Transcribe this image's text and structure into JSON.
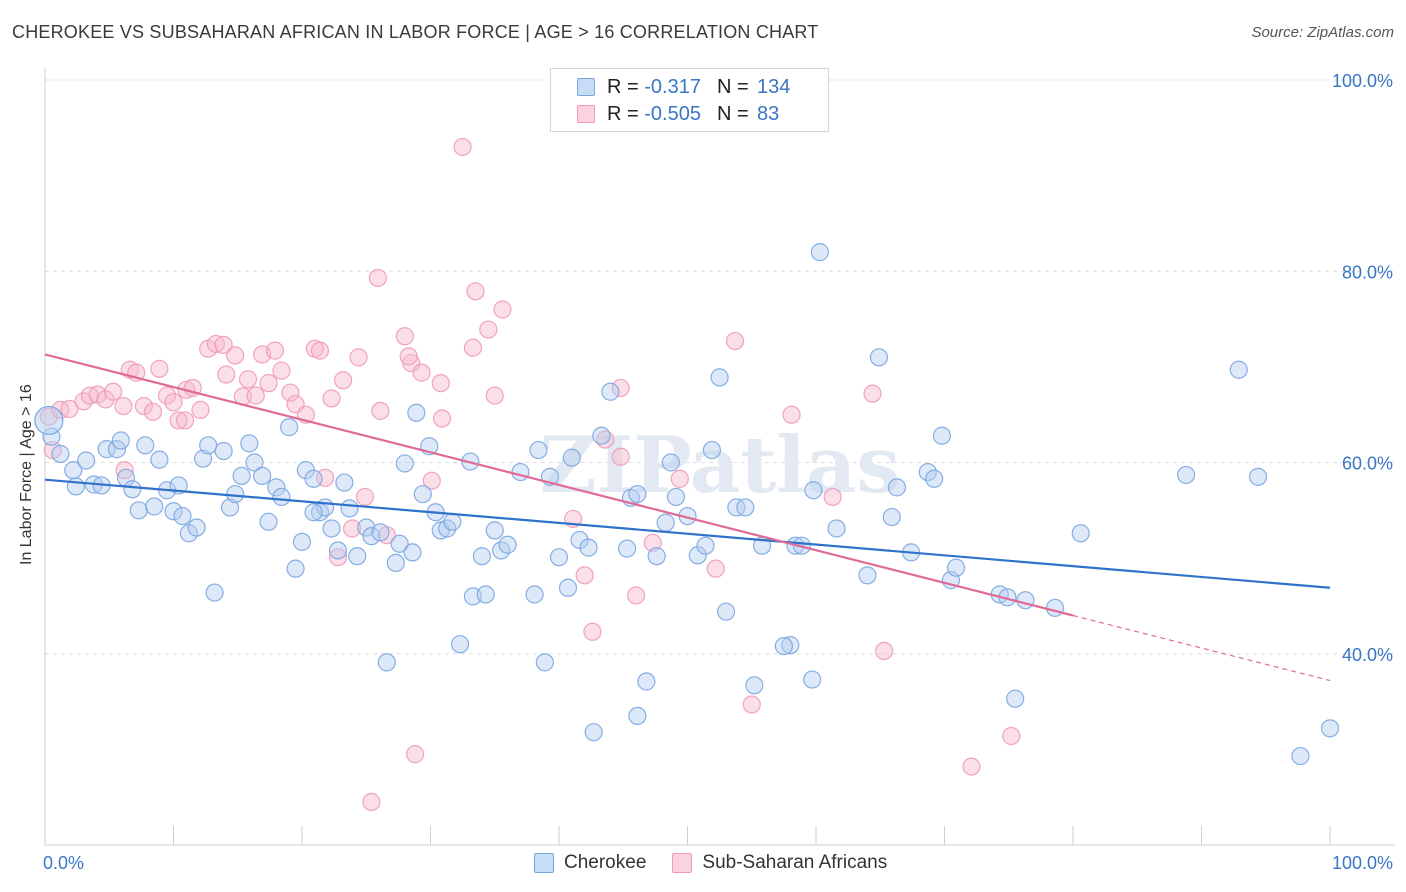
{
  "title": "CHEROKEE VS SUBSAHARAN AFRICAN IN LABOR FORCE | AGE > 16 CORRELATION CHART",
  "source": "Source: ZipAtlas.com",
  "watermark": "ZIPatlas",
  "legend": {
    "rows": [
      {
        "r_label": "R =",
        "r_value": "-0.317",
        "n_label": "N =",
        "n_value": "134",
        "color": "#7aa6e0"
      },
      {
        "r_label": "R =",
        "r_value": "-0.505",
        "n_label": "N =",
        "n_value": "83",
        "color": "#f09ab6"
      }
    ]
  },
  "bottom_legend": [
    "Cherokee",
    "Sub-Saharan Africans"
  ],
  "chart_data": {
    "type": "scatter",
    "title": "CHEROKEE VS SUBSAHARAN AFRICAN IN LABOR FORCE | AGE > 16 CORRELATION CHART",
    "xlabel": "",
    "ylabel": "In Labor Force | Age > 16",
    "xlim": [
      0,
      100
    ],
    "ylim": [
      20,
      105
    ],
    "x_tick_labels": [
      "0.0%",
      "100.0%"
    ],
    "y_tick_labels": [
      "40.0%",
      "60.0%",
      "80.0%",
      "100.0%"
    ],
    "y_ticks": [
      40,
      60,
      80,
      100
    ],
    "grid": true,
    "legend_position": "top-center",
    "colors": {
      "cherokee": "#7aa6e0",
      "cherokee_line": "#2f72c9",
      "subsaharan": "#f09ab6",
      "subsaharan_line": "#e06a96",
      "axis_text": "#3a76c6"
    },
    "series": [
      {
        "name": "Cherokee",
        "trend": {
          "x": [
            0,
            100
          ],
          "y": [
            58.2,
            46.9
          ]
        },
        "points": [
          [
            0.5,
            62.7
          ],
          [
            1.2,
            60.9
          ],
          [
            2.2,
            59.2
          ],
          [
            3.2,
            60.2
          ],
          [
            3.8,
            57.7
          ],
          [
            4.4,
            57.6
          ],
          [
            4.8,
            61.4
          ],
          [
            5.6,
            61.4
          ],
          [
            5.9,
            62.3
          ],
          [
            6.3,
            58.4
          ],
          [
            6.8,
            57.2
          ],
          [
            7.3,
            55.0
          ],
          [
            7.8,
            61.8
          ],
          [
            8.5,
            55.4
          ],
          [
            8.9,
            60.3
          ],
          [
            9.5,
            57.1
          ],
          [
            10.0,
            54.9
          ],
          [
            10.4,
            57.6
          ],
          [
            10.7,
            54.4
          ],
          [
            11.2,
            52.6
          ],
          [
            11.8,
            53.2
          ],
          [
            12.3,
            60.4
          ],
          [
            12.7,
            61.8
          ],
          [
            13.2,
            46.4
          ],
          [
            13.9,
            61.2
          ],
          [
            14.4,
            55.3
          ],
          [
            14.8,
            56.7
          ],
          [
            15.3,
            58.6
          ],
          [
            15.9,
            62.0
          ],
          [
            16.3,
            60.0
          ],
          [
            16.9,
            58.6
          ],
          [
            17.4,
            53.8
          ],
          [
            18.0,
            57.4
          ],
          [
            18.4,
            56.4
          ],
          [
            19.0,
            63.7
          ],
          [
            19.5,
            48.9
          ],
          [
            20.0,
            51.7
          ],
          [
            20.3,
            59.2
          ],
          [
            20.9,
            58.3
          ],
          [
            21.4,
            54.8
          ],
          [
            21.8,
            55.3
          ],
          [
            22.3,
            53.1
          ],
          [
            22.8,
            50.8
          ],
          [
            23.3,
            57.9
          ],
          [
            23.7,
            55.2
          ],
          [
            24.3,
            50.2
          ],
          [
            25.0,
            53.2
          ],
          [
            25.4,
            52.3
          ],
          [
            26.1,
            52.7
          ],
          [
            26.6,
            39.1
          ],
          [
            27.3,
            49.5
          ],
          [
            27.6,
            51.5
          ],
          [
            28.0,
            59.9
          ],
          [
            28.9,
            65.2
          ],
          [
            29.4,
            56.7
          ],
          [
            29.9,
            61.7
          ],
          [
            30.4,
            54.8
          ],
          [
            30.8,
            52.9
          ],
          [
            31.3,
            53.1
          ],
          [
            31.7,
            53.8
          ],
          [
            32.3,
            41.0
          ],
          [
            33.1,
            60.1
          ],
          [
            33.3,
            46.0
          ],
          [
            34.0,
            50.2
          ],
          [
            34.3,
            46.2
          ],
          [
            35.0,
            52.9
          ],
          [
            35.5,
            50.8
          ],
          [
            36.0,
            51.4
          ],
          [
            37.0,
            59.0
          ],
          [
            38.1,
            46.2
          ],
          [
            38.4,
            61.3
          ],
          [
            38.9,
            39.1
          ],
          [
            39.3,
            58.5
          ],
          [
            40.0,
            50.1
          ],
          [
            40.7,
            46.9
          ],
          [
            41.0,
            60.5
          ],
          [
            41.6,
            51.9
          ],
          [
            42.3,
            51.1
          ],
          [
            42.7,
            31.8
          ],
          [
            43.3,
            62.8
          ],
          [
            44.0,
            67.4
          ],
          [
            45.3,
            51.0
          ],
          [
            45.6,
            56.3
          ],
          [
            46.1,
            56.7
          ],
          [
            46.8,
            37.1
          ],
          [
            47.6,
            50.2
          ],
          [
            48.3,
            53.7
          ],
          [
            48.7,
            60.0
          ],
          [
            49.1,
            56.4
          ],
          [
            50.0,
            54.4
          ],
          [
            50.8,
            50.3
          ],
          [
            51.4,
            51.3
          ],
          [
            51.9,
            61.3
          ],
          [
            52.5,
            68.9
          ],
          [
            53.0,
            44.4
          ],
          [
            53.8,
            55.3
          ],
          [
            54.5,
            55.3
          ],
          [
            55.2,
            36.7
          ],
          [
            55.8,
            51.3
          ],
          [
            58.0,
            40.9
          ],
          [
            58.4,
            51.3
          ],
          [
            58.9,
            51.3
          ],
          [
            59.7,
            37.3
          ],
          [
            60.3,
            82.0
          ],
          [
            61.6,
            53.1
          ],
          [
            64.0,
            48.2
          ],
          [
            64.9,
            71.0
          ],
          [
            65.9,
            54.3
          ],
          [
            66.3,
            57.4
          ],
          [
            67.4,
            50.6
          ],
          [
            68.7,
            59.0
          ],
          [
            69.2,
            58.3
          ],
          [
            69.8,
            62.8
          ],
          [
            70.5,
            47.7
          ],
          [
            70.9,
            49.0
          ],
          [
            74.3,
            46.2
          ],
          [
            74.9,
            45.9
          ],
          [
            75.5,
            35.3
          ],
          [
            76.3,
            45.6
          ],
          [
            78.6,
            44.8
          ],
          [
            80.6,
            52.6
          ],
          [
            88.8,
            58.7
          ],
          [
            92.9,
            69.7
          ],
          [
            94.4,
            58.5
          ],
          [
            97.7,
            29.3
          ],
          [
            100.0,
            32.2
          ],
          [
            2.4,
            57.5
          ],
          [
            20.9,
            54.8
          ],
          [
            59.8,
            57.1
          ],
          [
            28.6,
            50.6
          ],
          [
            46.1,
            33.5
          ],
          [
            57.5,
            40.8
          ]
        ]
      },
      {
        "name": "Sub-Saharan Africans",
        "trend": {
          "x": [
            0,
            80
          ],
          "y": [
            71.3,
            44.0
          ],
          "dashed_to": {
            "x": 100,
            "y": 37.2
          }
        },
        "points": [
          [
            0.3,
            64.8
          ],
          [
            1.2,
            65.5
          ],
          [
            1.9,
            65.6
          ],
          [
            3.0,
            66.4
          ],
          [
            3.5,
            67.0
          ],
          [
            4.1,
            67.1
          ],
          [
            4.7,
            66.6
          ],
          [
            5.3,
            67.4
          ],
          [
            6.1,
            65.9
          ],
          [
            6.6,
            69.7
          ],
          [
            7.1,
            69.4
          ],
          [
            7.7,
            65.9
          ],
          [
            8.4,
            65.3
          ],
          [
            8.9,
            69.8
          ],
          [
            9.5,
            67.0
          ],
          [
            10.0,
            66.3
          ],
          [
            10.4,
            64.4
          ],
          [
            11.0,
            67.6
          ],
          [
            11.5,
            67.8
          ],
          [
            12.1,
            65.5
          ],
          [
            12.7,
            71.9
          ],
          [
            13.3,
            72.4
          ],
          [
            13.9,
            72.3
          ],
          [
            14.8,
            71.2
          ],
          [
            15.4,
            66.9
          ],
          [
            15.8,
            68.7
          ],
          [
            16.4,
            67.0
          ],
          [
            16.9,
            71.3
          ],
          [
            17.4,
            68.3
          ],
          [
            17.9,
            71.7
          ],
          [
            18.4,
            69.6
          ],
          [
            19.1,
            67.3
          ],
          [
            19.5,
            66.1
          ],
          [
            20.3,
            65.0
          ],
          [
            21.0,
            71.9
          ],
          [
            21.4,
            71.7
          ],
          [
            21.8,
            58.4
          ],
          [
            22.3,
            66.7
          ],
          [
            22.8,
            50.1
          ],
          [
            23.2,
            68.6
          ],
          [
            23.9,
            53.1
          ],
          [
            24.4,
            71.0
          ],
          [
            24.9,
            56.4
          ],
          [
            25.4,
            24.5
          ],
          [
            25.9,
            79.3
          ],
          [
            26.1,
            65.4
          ],
          [
            26.6,
            52.4
          ],
          [
            28.0,
            73.2
          ],
          [
            28.5,
            70.4
          ],
          [
            28.8,
            29.5
          ],
          [
            29.3,
            69.4
          ],
          [
            30.1,
            58.1
          ],
          [
            30.9,
            64.6
          ],
          [
            32.5,
            93.0
          ],
          [
            33.3,
            72.0
          ],
          [
            33.5,
            77.9
          ],
          [
            34.5,
            73.9
          ],
          [
            35.0,
            67.0
          ],
          [
            35.6,
            76.0
          ],
          [
            41.1,
            54.1
          ],
          [
            42.0,
            48.2
          ],
          [
            42.6,
            42.3
          ],
          [
            43.6,
            62.4
          ],
          [
            44.8,
            67.8
          ],
          [
            46.0,
            46.1
          ],
          [
            47.3,
            51.6
          ],
          [
            49.4,
            58.3
          ],
          [
            52.2,
            48.9
          ],
          [
            53.7,
            72.7
          ],
          [
            55.0,
            34.7
          ],
          [
            58.1,
            65.0
          ],
          [
            61.3,
            56.4
          ],
          [
            64.4,
            67.2
          ],
          [
            65.3,
            40.3
          ],
          [
            72.1,
            28.2
          ],
          [
            75.2,
            31.4
          ],
          [
            0.6,
            61.3
          ],
          [
            6.2,
            59.2
          ],
          [
            10.9,
            64.4
          ],
          [
            14.1,
            69.2
          ],
          [
            28.3,
            71.1
          ],
          [
            30.8,
            68.3
          ],
          [
            44.8,
            60.6
          ]
        ]
      }
    ]
  }
}
